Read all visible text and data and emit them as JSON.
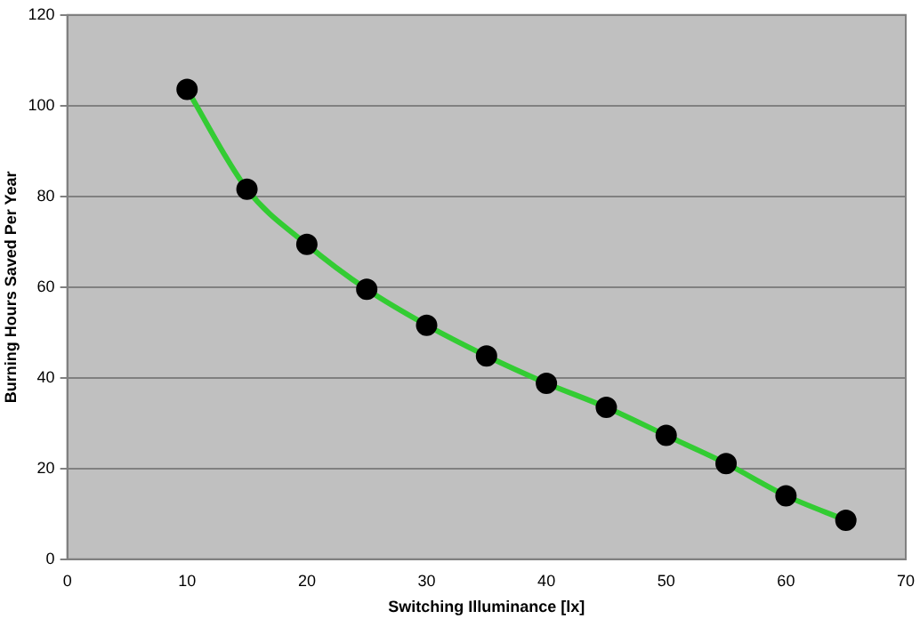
{
  "chart_data": {
    "type": "line",
    "xlabel": "Switching Illuminance [lx]",
    "ylabel": "Burning Hours Saved Per Year",
    "x": [
      10,
      15,
      20,
      25,
      30,
      35,
      40,
      45,
      50,
      55,
      60,
      65
    ],
    "series": [
      {
        "color": "#33cc33",
        "values": [
          103.6,
          81.6,
          69.4,
          59.5,
          51.6,
          44.8,
          38.8,
          33.5,
          27.3,
          21.1,
          14.0,
          8.6
        ]
      }
    ],
    "xlim": [
      0,
      70
    ],
    "xticks": [
      0,
      10,
      20,
      30,
      40,
      50,
      60,
      70
    ],
    "ylim": [
      0,
      120
    ],
    "yticks": [
      0,
      20,
      40,
      60,
      80,
      100,
      120
    ],
    "grid": "y",
    "legend": false,
    "marker": "circle",
    "line_style": "solid"
  }
}
